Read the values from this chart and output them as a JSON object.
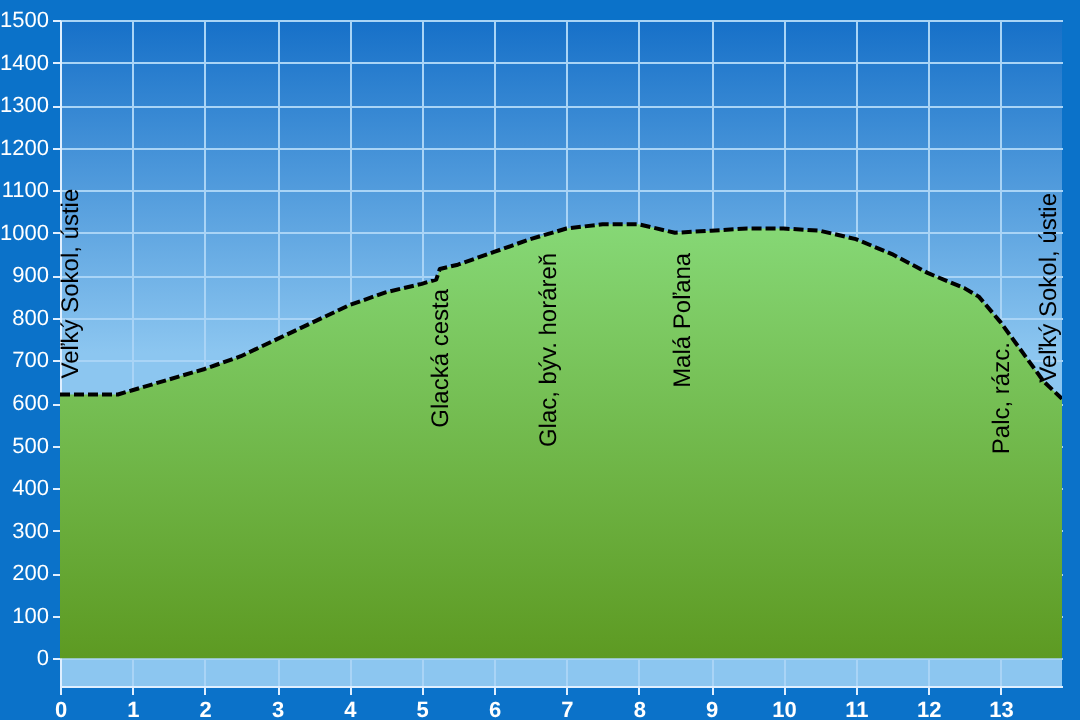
{
  "chart_data": {
    "type": "area",
    "x": [
      0,
      0.8,
      1,
      1.5,
      2,
      2.5,
      3,
      3.5,
      4,
      4.5,
      5,
      5.2,
      5.25,
      5.5,
      6,
      6.5,
      7,
      7.5,
      8,
      8.5,
      9,
      9.5,
      10,
      10.5,
      11,
      11.5,
      12,
      12.5,
      12.7,
      13,
      13.3,
      13.6,
      13.85
    ],
    "series": [
      {
        "color": "#86d876",
        "values": [
          620,
          620,
          630,
          655,
          680,
          710,
          750,
          790,
          830,
          860,
          880,
          890,
          915,
          925,
          955,
          985,
          1010,
          1020,
          1020,
          1000,
          1005,
          1010,
          1010,
          1005,
          985,
          950,
          905,
          870,
          850,
          790,
          720,
          650,
          610
        ]
      }
    ],
    "annotations": [
      {
        "text": "Veľký Sokol, ústie",
        "x": 0,
        "y": 620
      },
      {
        "text": "Glacká cesta",
        "x": 5.25,
        "y": 915
      },
      {
        "text": "Glac, býv. horáreň",
        "x": 6.75,
        "y": 1000
      },
      {
        "text": "Malá Poľana",
        "x": 8.6,
        "y": 1000
      },
      {
        "text": "Palc, rázc.",
        "x": 13,
        "y": 790
      },
      {
        "text": "Veľký Sokol, ústie",
        "x": 13.85,
        "y": 610
      }
    ],
    "xlim": [
      0,
      13.85
    ],
    "xticks": [
      0,
      1,
      2,
      3,
      4,
      5,
      6,
      7,
      8,
      9,
      10,
      11,
      12,
      13
    ],
    "ylim": [
      -65,
      1500
    ],
    "yticks": [
      0,
      100,
      200,
      300,
      400,
      500,
      600,
      700,
      800,
      900,
      1000,
      1100,
      1200,
      1300,
      1400,
      1500
    ],
    "grid": true,
    "line_style": "dashed"
  }
}
